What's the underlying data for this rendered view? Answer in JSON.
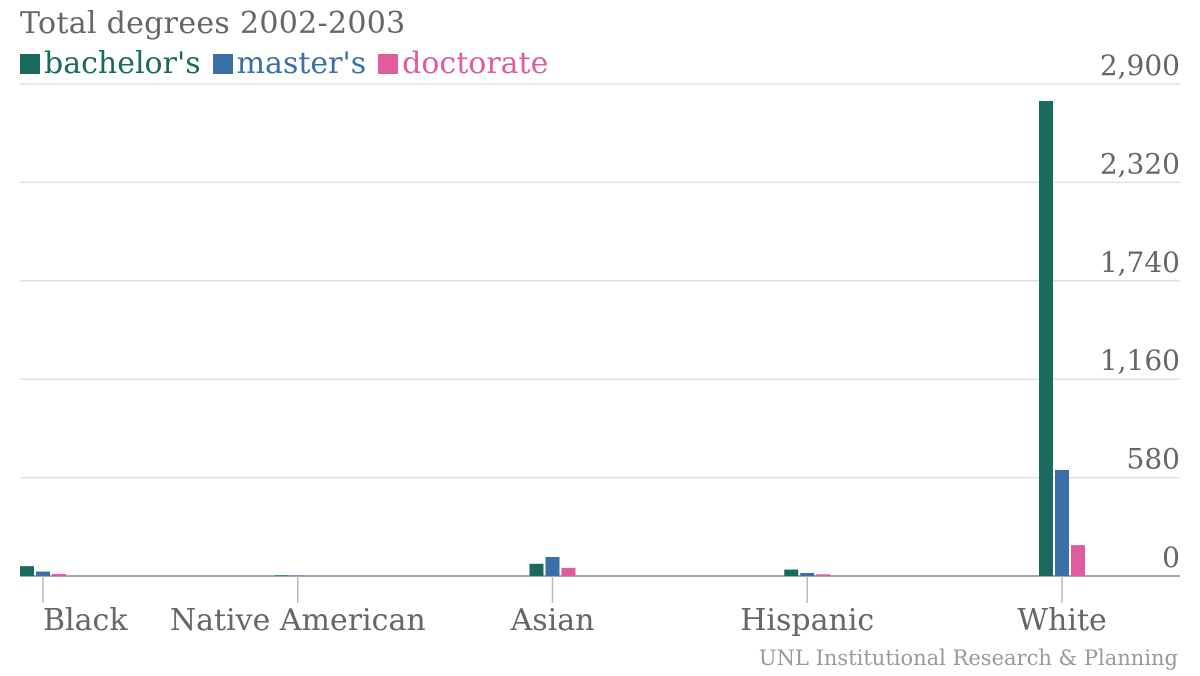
{
  "chart_data": {
    "type": "bar",
    "title": "Total degrees 2002-2003",
    "categories": [
      "Black",
      "Native American",
      "Asian",
      "Hispanic",
      "White"
    ],
    "series": [
      {
        "name": "bachelor's",
        "color": "#1a6b5e",
        "values": [
          58,
          4,
          72,
          38,
          2800
        ]
      },
      {
        "name": "master's",
        "color": "#3a6fa8",
        "values": [
          26,
          3,
          112,
          18,
          625
        ]
      },
      {
        "name": "doctorate",
        "color": "#e05c9f",
        "values": [
          12,
          1,
          48,
          10,
          182
        ]
      }
    ],
    "y_ticks": [
      "0",
      "580",
      "1,160",
      "1,740",
      "2,320",
      "2,900"
    ],
    "ylim": [
      0,
      2900
    ],
    "grid": true,
    "legend_position": "top-left",
    "source": "UNL Institutional Research & Planning"
  }
}
